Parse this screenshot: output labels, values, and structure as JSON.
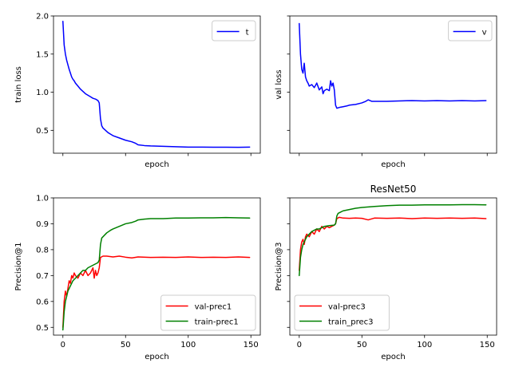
{
  "chart_data": [
    {
      "type": "line",
      "title": "",
      "xlabel": "epoch",
      "ylabel": "train loss",
      "xlim": [
        -7.5,
        157.5
      ],
      "ylim": [
        0.2,
        2.0
      ],
      "xticks": [
        0,
        50,
        100,
        150
      ],
      "show_xtick_labels": false,
      "yticks": [
        0.5,
        1.0,
        1.5,
        2.0
      ],
      "ytick_labels": [
        "0.5",
        "1.0",
        "1.5",
        "2.0"
      ],
      "legend_loc": "top-right",
      "grid": false,
      "series": [
        {
          "name": "t",
          "color": "#0000ff",
          "points": [
            [
              0,
              1.93
            ],
            [
              1,
              1.62
            ],
            [
              2,
              1.5
            ],
            [
              3,
              1.42
            ],
            [
              4,
              1.36
            ],
            [
              5,
              1.3
            ],
            [
              6,
              1.25
            ],
            [
              7,
              1.2
            ],
            [
              8,
              1.17
            ],
            [
              9,
              1.15
            ],
            [
              10,
              1.12
            ],
            [
              12,
              1.08
            ],
            [
              14,
              1.04
            ],
            [
              16,
              1.01
            ],
            [
              18,
              0.98
            ],
            [
              20,
              0.96
            ],
            [
              22,
              0.94
            ],
            [
              24,
              0.92
            ],
            [
              26,
              0.91
            ],
            [
              28,
              0.89
            ],
            [
              29,
              0.86
            ],
            [
              30,
              0.65
            ],
            [
              31,
              0.56
            ],
            [
              32,
              0.53
            ],
            [
              34,
              0.5
            ],
            [
              36,
              0.47
            ],
            [
              38,
              0.45
            ],
            [
              40,
              0.43
            ],
            [
              45,
              0.4
            ],
            [
              50,
              0.37
            ],
            [
              55,
              0.35
            ],
            [
              58,
              0.33
            ],
            [
              60,
              0.31
            ],
            [
              65,
              0.3
            ],
            [
              70,
              0.295
            ],
            [
              80,
              0.29
            ],
            [
              90,
              0.285
            ],
            [
              100,
              0.28
            ],
            [
              110,
              0.28
            ],
            [
              120,
              0.278
            ],
            [
              130,
              0.278
            ],
            [
              140,
              0.277
            ],
            [
              149,
              0.28
            ]
          ]
        }
      ]
    },
    {
      "type": "line",
      "title": "",
      "xlabel": "epoch",
      "ylabel": "val loss",
      "xlim": [
        -7.5,
        157.5
      ],
      "ylim": [
        0.2,
        2.0
      ],
      "xticks": [
        0,
        50,
        100,
        150
      ],
      "show_xtick_labels": false,
      "yticks": [
        0.5,
        1.0,
        1.5,
        2.0
      ],
      "show_ytick_labels": false,
      "legend_loc": "top-right",
      "grid": false,
      "series": [
        {
          "name": "v",
          "color": "#0000ff",
          "points": [
            [
              0,
              1.9
            ],
            [
              1,
              1.5
            ],
            [
              2,
              1.3
            ],
            [
              3,
              1.25
            ],
            [
              4,
              1.38
            ],
            [
              5,
              1.2
            ],
            [
              6,
              1.15
            ],
            [
              7,
              1.12
            ],
            [
              8,
              1.08
            ],
            [
              10,
              1.1
            ],
            [
              12,
              1.06
            ],
            [
              14,
              1.12
            ],
            [
              16,
              1.03
            ],
            [
              18,
              1.07
            ],
            [
              19,
              0.98
            ],
            [
              20,
              1.02
            ],
            [
              22,
              1.04
            ],
            [
              24,
              1.02
            ],
            [
              25,
              1.15
            ],
            [
              26,
              1.08
            ],
            [
              27,
              1.12
            ],
            [
              28,
              1.03
            ],
            [
              29,
              0.83
            ],
            [
              30,
              0.79
            ],
            [
              32,
              0.8
            ],
            [
              35,
              0.81
            ],
            [
              38,
              0.82
            ],
            [
              40,
              0.83
            ],
            [
              45,
              0.84
            ],
            [
              50,
              0.86
            ],
            [
              53,
              0.88
            ],
            [
              55,
              0.9
            ],
            [
              58,
              0.88
            ],
            [
              60,
              0.88
            ],
            [
              70,
              0.88
            ],
            [
              80,
              0.885
            ],
            [
              90,
              0.89
            ],
            [
              100,
              0.885
            ],
            [
              110,
              0.89
            ],
            [
              120,
              0.885
            ],
            [
              130,
              0.89
            ],
            [
              140,
              0.885
            ],
            [
              149,
              0.89
            ]
          ]
        }
      ]
    },
    {
      "type": "line",
      "title": "",
      "xlabel": "epoch",
      "ylabel": "Precision@1",
      "xlim": [
        -7.5,
        157.5
      ],
      "ylim": [
        0.47,
        1.0
      ],
      "xticks": [
        0,
        50,
        100,
        150
      ],
      "xtick_labels": [
        "0",
        "50",
        "100",
        "150"
      ],
      "yticks": [
        0.5,
        0.6,
        0.7,
        0.8,
        0.9,
        1.0
      ],
      "ytick_labels": [
        "0.5",
        "0.6",
        "0.7",
        "0.8",
        "0.9",
        "1.0"
      ],
      "legend_loc": "bottom-right",
      "grid": false,
      "series": [
        {
          "name": "val-prec1",
          "color": "#ff0000",
          "points": [
            [
              0,
              0.5
            ],
            [
              1,
              0.6
            ],
            [
              2,
              0.64
            ],
            [
              3,
              0.62
            ],
            [
              4,
              0.65
            ],
            [
              5,
              0.68
            ],
            [
              6,
              0.67
            ],
            [
              7,
              0.7
            ],
            [
              8,
              0.69
            ],
            [
              9,
              0.71
            ],
            [
              10,
              0.7
            ],
            [
              12,
              0.69
            ],
            [
              14,
              0.71
            ],
            [
              16,
              0.7
            ],
            [
              18,
              0.72
            ],
            [
              20,
              0.7
            ],
            [
              22,
              0.71
            ],
            [
              24,
              0.73
            ],
            [
              25,
              0.69
            ],
            [
              26,
              0.72
            ],
            [
              27,
              0.7
            ],
            [
              28,
              0.71
            ],
            [
              29,
              0.73
            ],
            [
              30,
              0.77
            ],
            [
              32,
              0.775
            ],
            [
              35,
              0.775
            ],
            [
              40,
              0.772
            ],
            [
              45,
              0.775
            ],
            [
              50,
              0.771
            ],
            [
              55,
              0.768
            ],
            [
              60,
              0.772
            ],
            [
              70,
              0.77
            ],
            [
              80,
              0.771
            ],
            [
              90,
              0.77
            ],
            [
              100,
              0.772
            ],
            [
              110,
              0.77
            ],
            [
              120,
              0.771
            ],
            [
              130,
              0.77
            ],
            [
              140,
              0.772
            ],
            [
              149,
              0.77
            ]
          ]
        },
        {
          "name": "train-prec1",
          "color": "#008000",
          "points": [
            [
              0,
              0.49
            ],
            [
              1,
              0.56
            ],
            [
              2,
              0.6
            ],
            [
              3,
              0.62
            ],
            [
              4,
              0.64
            ],
            [
              5,
              0.65
            ],
            [
              6,
              0.66
            ],
            [
              7,
              0.67
            ],
            [
              8,
              0.68
            ],
            [
              10,
              0.69
            ],
            [
              12,
              0.7
            ],
            [
              14,
              0.71
            ],
            [
              16,
              0.72
            ],
            [
              18,
              0.72
            ],
            [
              20,
              0.73
            ],
            [
              22,
              0.735
            ],
            [
              24,
              0.74
            ],
            [
              26,
              0.745
            ],
            [
              28,
              0.75
            ],
            [
              29,
              0.76
            ],
            [
              30,
              0.82
            ],
            [
              31,
              0.845
            ],
            [
              33,
              0.855
            ],
            [
              35,
              0.865
            ],
            [
              38,
              0.875
            ],
            [
              40,
              0.88
            ],
            [
              45,
              0.89
            ],
            [
              50,
              0.9
            ],
            [
              55,
              0.905
            ],
            [
              58,
              0.91
            ],
            [
              60,
              0.915
            ],
            [
              65,
              0.918
            ],
            [
              70,
              0.92
            ],
            [
              80,
              0.92
            ],
            [
              90,
              0.922
            ],
            [
              100,
              0.922
            ],
            [
              110,
              0.923
            ],
            [
              120,
              0.923
            ],
            [
              130,
              0.924
            ],
            [
              140,
              0.923
            ],
            [
              149,
              0.922
            ]
          ]
        }
      ]
    },
    {
      "type": "line",
      "title": "ResNet50",
      "xlabel": "epoch",
      "ylabel": "Precision@3",
      "xlim": [
        -7.5,
        157.5
      ],
      "ylim": [
        0.47,
        1.0
      ],
      "xticks": [
        0,
        50,
        100,
        150
      ],
      "xtick_labels": [
        "0",
        "50",
        "100",
        "150"
      ],
      "yticks": [
        0.5,
        0.6,
        0.7,
        0.8,
        0.9,
        1.0
      ],
      "show_ytick_labels": false,
      "legend_loc": "bottom-left",
      "grid": false,
      "series": [
        {
          "name": "val-prec3",
          "color": "#ff0000",
          "points": [
            [
              0,
              0.72
            ],
            [
              1,
              0.8
            ],
            [
              2,
              0.83
            ],
            [
              3,
              0.84
            ],
            [
              4,
              0.82
            ],
            [
              5,
              0.85
            ],
            [
              6,
              0.86
            ],
            [
              8,
              0.85
            ],
            [
              10,
              0.87
            ],
            [
              12,
              0.86
            ],
            [
              14,
              0.88
            ],
            [
              16,
              0.87
            ],
            [
              18,
              0.89
            ],
            [
              20,
              0.88
            ],
            [
              22,
              0.89
            ],
            [
              24,
              0.885
            ],
            [
              26,
              0.89
            ],
            [
              28,
              0.895
            ],
            [
              29,
              0.9
            ],
            [
              30,
              0.92
            ],
            [
              32,
              0.925
            ],
            [
              35,
              0.922
            ],
            [
              40,
              0.921
            ],
            [
              45,
              0.922
            ],
            [
              50,
              0.921
            ],
            [
              55,
              0.915
            ],
            [
              60,
              0.922
            ],
            [
              70,
              0.921
            ],
            [
              80,
              0.922
            ],
            [
              90,
              0.92
            ],
            [
              100,
              0.922
            ],
            [
              110,
              0.921
            ],
            [
              120,
              0.922
            ],
            [
              130,
              0.921
            ],
            [
              140,
              0.922
            ],
            [
              149,
              0.92
            ]
          ]
        },
        {
          "name": "train_prec3",
          "color": "#008000",
          "points": [
            [
              0,
              0.7
            ],
            [
              1,
              0.77
            ],
            [
              2,
              0.8
            ],
            [
              3,
              0.82
            ],
            [
              4,
              0.83
            ],
            [
              5,
              0.84
            ],
            [
              6,
              0.85
            ],
            [
              8,
              0.86
            ],
            [
              10,
              0.87
            ],
            [
              12,
              0.875
            ],
            [
              14,
              0.88
            ],
            [
              16,
              0.88
            ],
            [
              18,
              0.885
            ],
            [
              20,
              0.89
            ],
            [
              24,
              0.893
            ],
            [
              28,
              0.895
            ],
            [
              29,
              0.9
            ],
            [
              30,
              0.93
            ],
            [
              31,
              0.94
            ],
            [
              33,
              0.945
            ],
            [
              35,
              0.95
            ],
            [
              40,
              0.955
            ],
            [
              45,
              0.96
            ],
            [
              50,
              0.963
            ],
            [
              55,
              0.965
            ],
            [
              60,
              0.967
            ],
            [
              70,
              0.97
            ],
            [
              80,
              0.972
            ],
            [
              90,
              0.972
            ],
            [
              100,
              0.973
            ],
            [
              110,
              0.973
            ],
            [
              120,
              0.973
            ],
            [
              130,
              0.974
            ],
            [
              140,
              0.974
            ],
            [
              149,
              0.973
            ]
          ]
        }
      ]
    }
  ]
}
